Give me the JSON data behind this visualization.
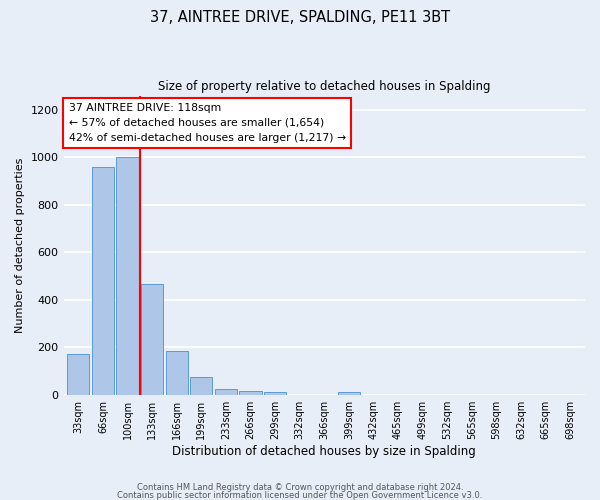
{
  "title": "37, AINTREE DRIVE, SPALDING, PE11 3BT",
  "subtitle": "Size of property relative to detached houses in Spalding",
  "xlabel": "Distribution of detached houses by size in Spalding",
  "ylabel": "Number of detached properties",
  "bar_labels": [
    "33sqm",
    "66sqm",
    "100sqm",
    "133sqm",
    "166sqm",
    "199sqm",
    "233sqm",
    "266sqm",
    "299sqm",
    "332sqm",
    "366sqm",
    "399sqm",
    "432sqm",
    "465sqm",
    "499sqm",
    "532sqm",
    "565sqm",
    "598sqm",
    "632sqm",
    "665sqm",
    "698sqm"
  ],
  "bar_values": [
    170,
    960,
    1000,
    465,
    185,
    75,
    25,
    15,
    10,
    0,
    0,
    10,
    0,
    0,
    0,
    0,
    0,
    0,
    0,
    0,
    0
  ],
  "bar_color": "#aec6e8",
  "bar_edge_color": "#5b9bd5",
  "vline_color": "red",
  "ylim": [
    0,
    1260
  ],
  "annotation_text": "37 AINTREE DRIVE: 118sqm\n← 57% of detached houses are smaller (1,654)\n42% of semi-detached houses are larger (1,217) →",
  "annotation_box_color": "white",
  "annotation_box_edge_color": "red",
  "footer_line1": "Contains HM Land Registry data © Crown copyright and database right 2024.",
  "footer_line2": "Contains public sector information licensed under the Open Government Licence v3.0.",
  "background_color": "#e8eef7"
}
